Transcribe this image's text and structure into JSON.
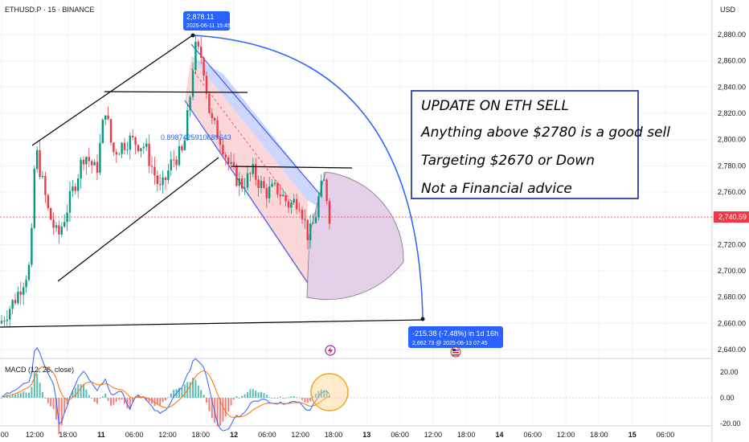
{
  "symbol": "ETHUSD.P · 15 · BINANCE",
  "currency": "USD",
  "last_price_label": "2,740.59",
  "fib_label": "0.8987425910689643",
  "high_callout": {
    "price": "2,878.11",
    "time": "2025-06-11 15:45"
  },
  "target_callout": {
    "change": "-215.38 (-7.48%) in 1d 16h",
    "detail": "2,662.73 @ 2025-06-13  07:45"
  },
  "note": {
    "lines": [
      "UPDATE ON ETH SELL",
      "Anything above $2780 is a good sell",
      "Targeting $2670 or Down",
      "Not a Financial advice"
    ]
  },
  "macd_label": "MACD (12, 26, close)",
  "colors": {
    "up": "#089981",
    "down": "#f23645",
    "macd_line": "#2962ff",
    "signal_line": "#ff6d00",
    "channel_upper": "#4a6cf0",
    "channel_lower": "#f7a8ad",
    "note_border": "#3f51b5",
    "arc": "#2962ff",
    "fan": "#c9a0d6",
    "highlight": "#f5a623",
    "price_line": "#f23645"
  },
  "chart_data": {
    "type": "candlestick",
    "y_axis": {
      "ticks": [
        2880,
        2860,
        2840,
        2820,
        2800,
        2780,
        2760,
        2740,
        2720,
        2700,
        2680,
        2660,
        2640
      ],
      "tick_labels": [
        "2,880.00",
        "2,860.00",
        "2,840.00",
        "2,820.00",
        "2,800.00",
        "2,780.00",
        "2,760.00",
        "2,740.00",
        "2,720.00",
        "2,700.00",
        "2,680.00",
        "2,660.00",
        "2,640.00"
      ],
      "range": [
        2630,
        2895
      ]
    },
    "x_axis": {
      "tick_labels": [
        "6:00",
        "12:00",
        "18:00",
        "11",
        "06:00",
        "12:00",
        "18:00",
        "12",
        "06:00",
        "12:00",
        "18:00",
        "13",
        "06:00",
        "12:00",
        "18:00",
        "14",
        "06:00",
        "12:00",
        "18:00",
        "15",
        "06:00"
      ],
      "start": "2025-06-10 06:00",
      "end": "2025-06-15 06:00"
    },
    "last_price": 2740.59,
    "swing_high": {
      "time": "2025-06-11 15:45",
      "price": 2878.11
    },
    "projected_target": {
      "time": "2025-06-13 07:45",
      "price": 2662.73,
      "change": -215.38,
      "change_pct": -7.48
    },
    "macd": {
      "fast": 12,
      "slow": 26,
      "source": "close",
      "ticks": [
        20,
        0,
        -20
      ],
      "tick_labels": [
        "20.00",
        "0.00",
        "-20.00"
      ],
      "range": [
        -22,
        24
      ]
    }
  }
}
